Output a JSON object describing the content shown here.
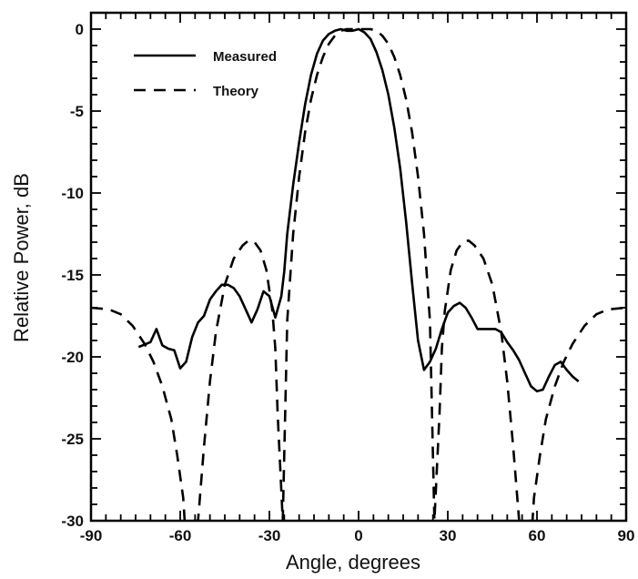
{
  "chart_data": {
    "type": "line",
    "title": "",
    "xlabel": "Angle, degrees",
    "ylabel": "Relative Power, dB",
    "xlim": [
      -90,
      90
    ],
    "ylim": [
      -30,
      1
    ],
    "xticks": [
      -90,
      -60,
      -30,
      0,
      30,
      60,
      90
    ],
    "yticks": [
      0,
      -5,
      -10,
      -15,
      -20,
      -25,
      -30
    ],
    "grid": false,
    "legend_position": "top-left",
    "series": [
      {
        "name": "Measured",
        "style": "solid",
        "color": "#000000",
        "x": [
          -74,
          -70,
          -68,
          -66,
          -64,
          -62,
          -60,
          -58,
          -56,
          -54,
          -52,
          -50,
          -48,
          -46,
          -44,
          -42,
          -40,
          -38,
          -36,
          -34,
          -32,
          -30,
          -28,
          -26,
          -25,
          -24,
          -22,
          -20,
          -18,
          -16,
          -14,
          -12,
          -10,
          -8,
          -6,
          -4,
          -2,
          0,
          2,
          4,
          6,
          8,
          10,
          12,
          14,
          16,
          18,
          20,
          22,
          24,
          26,
          28,
          30,
          32,
          34,
          36,
          38,
          40,
          42,
          44,
          46,
          48,
          50,
          52,
          54,
          56,
          58,
          60,
          62,
          64,
          66,
          68,
          70,
          72,
          74
        ],
        "y": [
          -19.4,
          -19.1,
          -18.3,
          -19.3,
          -19.5,
          -19.6,
          -20.7,
          -20.3,
          -18.8,
          -17.9,
          -17.5,
          -16.5,
          -16.0,
          -15.6,
          -15.6,
          -15.8,
          -16.3,
          -17.1,
          -17.9,
          -17.1,
          -16.0,
          -16.3,
          -17.6,
          -16.3,
          -14.8,
          -12.5,
          -9.5,
          -6.9,
          -4.6,
          -2.8,
          -1.5,
          -0.7,
          -0.3,
          -0.1,
          0.0,
          -0.1,
          -0.1,
          0.0,
          -0.2,
          -0.6,
          -1.4,
          -2.5,
          -4.0,
          -6.0,
          -8.5,
          -11.8,
          -15.5,
          -19.0,
          -20.8,
          -20.3,
          -19.5,
          -18.3,
          -17.3,
          -16.9,
          -16.7,
          -17.0,
          -17.6,
          -18.3,
          -18.3,
          -18.3,
          -18.3,
          -18.5,
          -19.1,
          -19.6,
          -20.2,
          -21.0,
          -21.8,
          -22.1,
          -22.0,
          -21.2,
          -20.5,
          -20.3,
          -20.8,
          -21.2,
          -21.5
        ]
      },
      {
        "name": "Theory",
        "style": "dashed",
        "color": "#000000",
        "x": [
          -90,
          -84,
          -80,
          -76,
          -72,
          -69,
          -66,
          -63,
          -61,
          -59,
          -58.5,
          -54,
          -52,
          -50,
          -48,
          -45,
          -42,
          -39,
          -37,
          -35,
          -33,
          -31,
          -29,
          -28,
          -27.2,
          -25.5,
          -24,
          -22,
          -20,
          -18,
          -16,
          -14,
          -12,
          -10,
          -8,
          -6,
          -4,
          -2,
          0,
          2,
          4,
          6,
          8,
          10,
          12,
          14,
          16,
          18,
          20,
          22,
          24,
          25.5,
          27.2,
          28,
          29,
          31,
          33,
          35,
          37,
          39,
          42,
          45,
          48,
          50,
          52,
          54,
          58.5,
          59,
          61,
          63,
          66,
          69,
          72,
          76,
          80,
          84,
          90
        ],
        "y": [
          -17.0,
          -17.1,
          -17.4,
          -18.1,
          -19.2,
          -20.3,
          -21.8,
          -23.8,
          -26.0,
          -28.6,
          -30.0,
          -30.0,
          -25.5,
          -21.5,
          -18.5,
          -15.6,
          -14.0,
          -13.2,
          -12.9,
          -13.0,
          -13.5,
          -14.7,
          -17.2,
          -19.5,
          -23.5,
          -30.0,
          -17.8,
          -12.5,
          -9.0,
          -6.3,
          -4.3,
          -2.8,
          -1.7,
          -0.9,
          -0.4,
          -0.1,
          0.0,
          0.0,
          0.0,
          0.0,
          0.0,
          -0.1,
          -0.4,
          -0.9,
          -1.7,
          -2.8,
          -4.3,
          -6.3,
          -9.0,
          -12.5,
          -17.8,
          -30.0,
          -23.5,
          -19.5,
          -17.2,
          -14.7,
          -13.5,
          -13.0,
          -12.9,
          -13.2,
          -14.0,
          -15.6,
          -18.5,
          -21.5,
          -25.5,
          -30.0,
          -30.0,
          -28.6,
          -26.0,
          -23.8,
          -21.8,
          -20.3,
          -19.2,
          -18.1,
          -17.4,
          -17.1,
          -17.0
        ]
      }
    ]
  }
}
